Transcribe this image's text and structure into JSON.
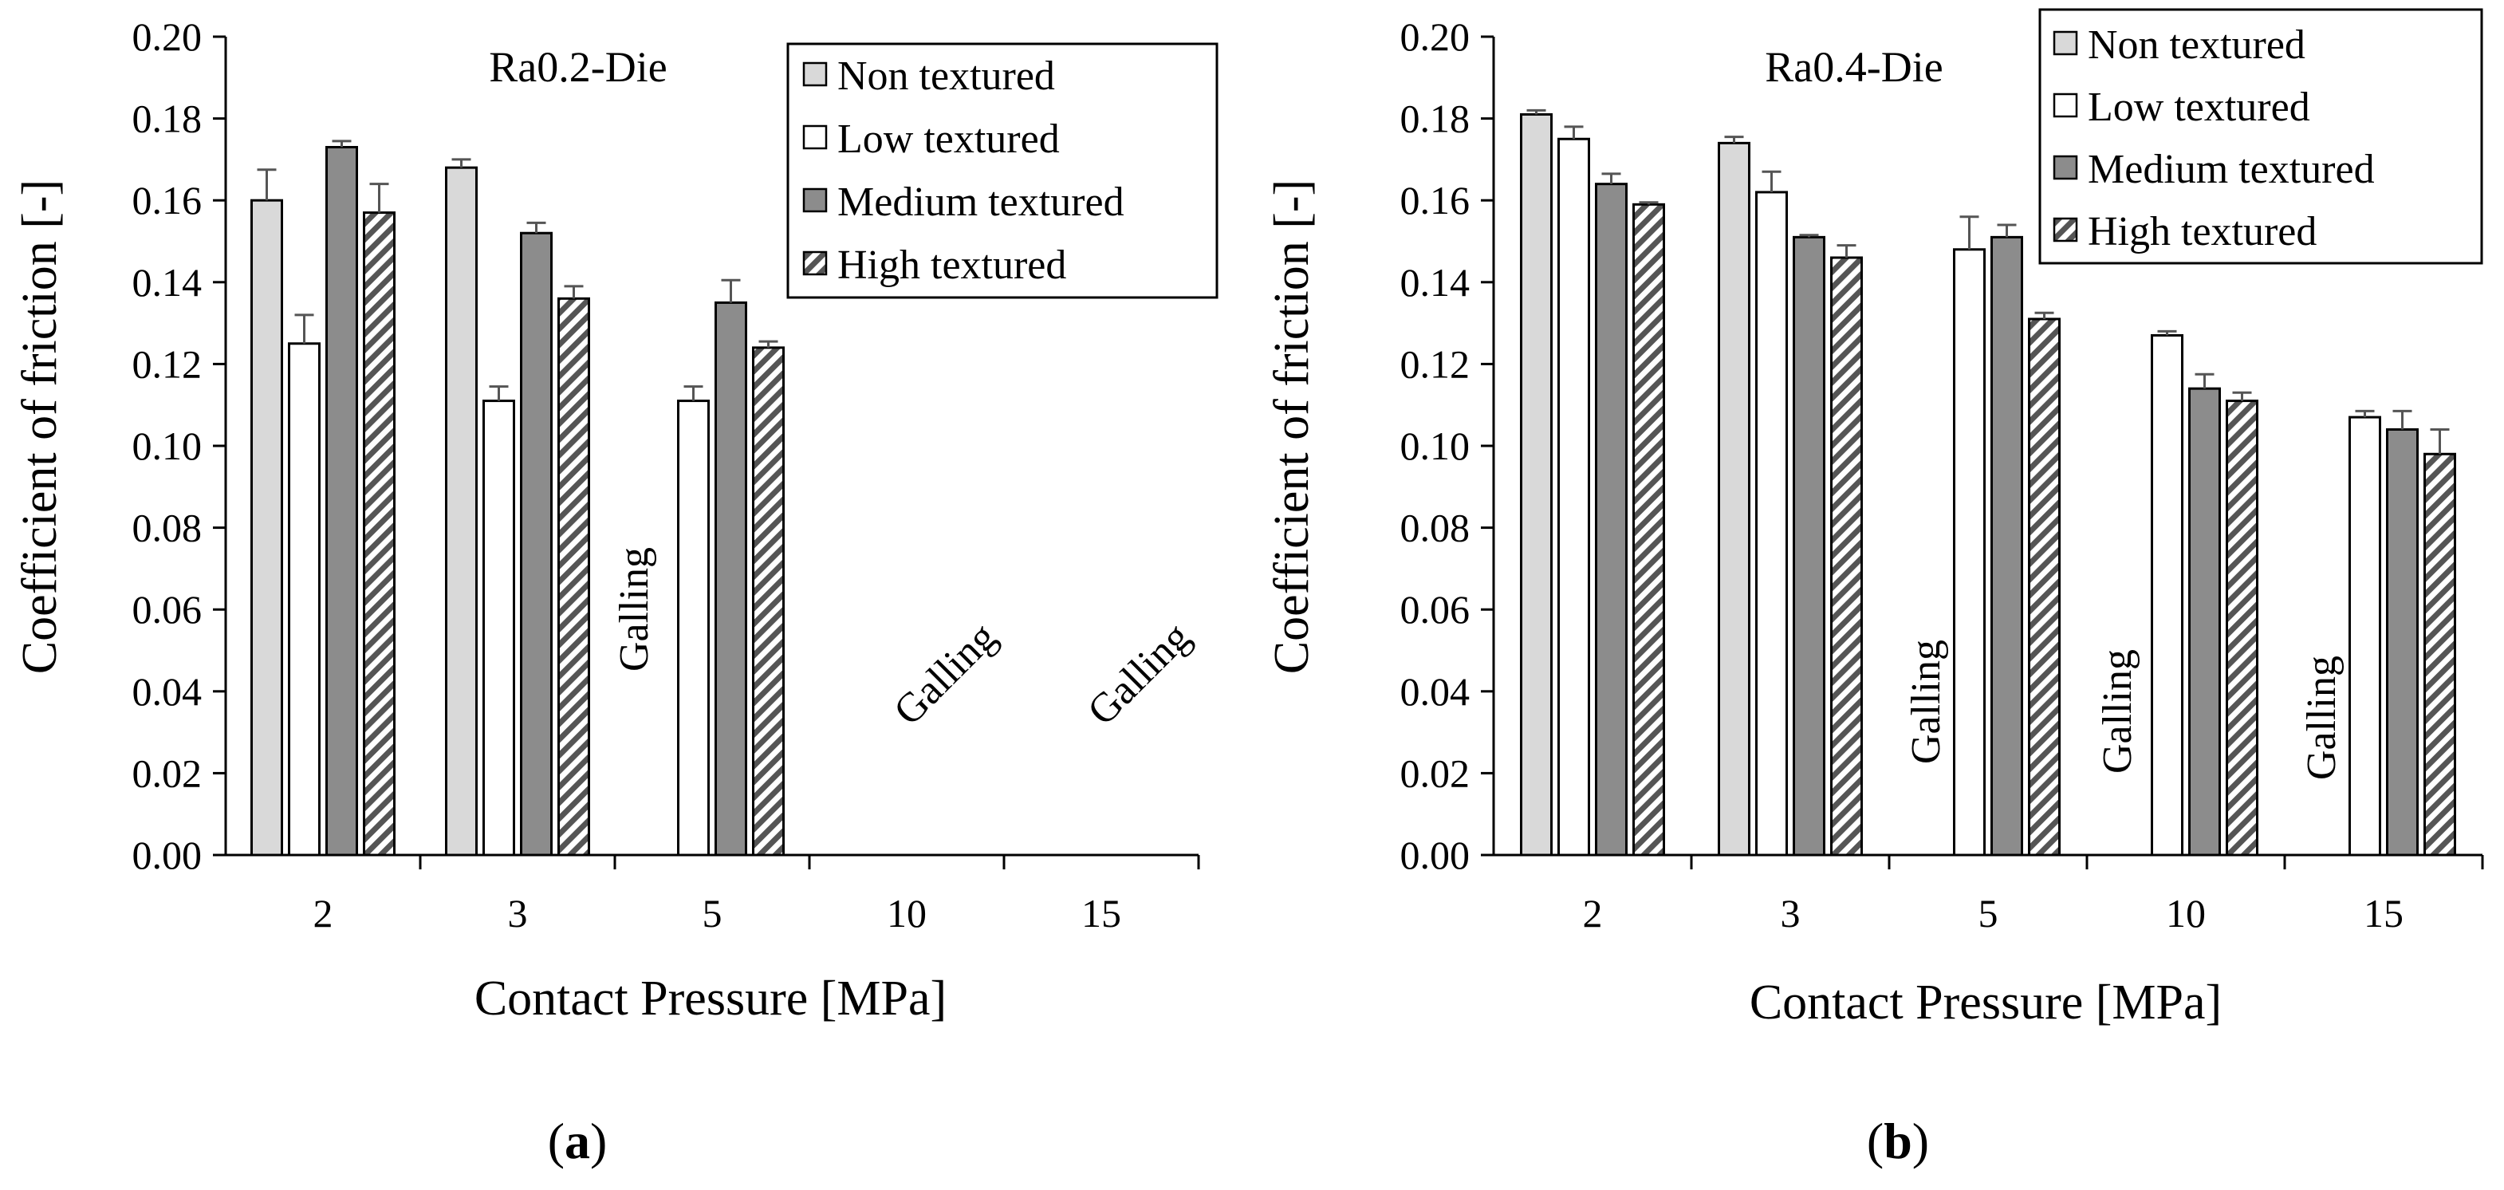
{
  "chart_data": [
    {
      "type": "bar",
      "panel_label": "a",
      "title": "Ra0.2-Die",
      "xlabel": "Contact Pressure [MPa]",
      "ylabel": "Coefficient of friction [-]",
      "ylim": [
        0,
        0.2
      ],
      "yticks": [
        "0.00",
        "0.02",
        "0.04",
        "0.06",
        "0.08",
        "0.10",
        "0.12",
        "0.14",
        "0.16",
        "0.18",
        "0.20"
      ],
      "categories": [
        "2",
        "3",
        "5",
        "10",
        "15"
      ],
      "series": [
        {
          "name": "Non textured",
          "values": [
            0.16,
            0.168,
            null,
            null,
            null
          ],
          "errors": [
            0.0075,
            0.002,
            null,
            null,
            null
          ]
        },
        {
          "name": "Low textured",
          "values": [
            0.125,
            0.111,
            0.111,
            null,
            null
          ],
          "errors": [
            0.007,
            0.0035,
            0.0035,
            null,
            null
          ]
        },
        {
          "name": "Medium textured",
          "values": [
            0.173,
            0.152,
            0.135,
            null,
            null
          ],
          "errors": [
            0.0015,
            0.0025,
            0.0055,
            null,
            null
          ]
        },
        {
          "name": "High textured",
          "values": [
            0.157,
            0.136,
            0.124,
            null,
            null
          ],
          "errors": [
            0.007,
            0.003,
            0.0015,
            null,
            null
          ]
        }
      ],
      "annotations": [
        {
          "text": "Galling",
          "category": "5"
        },
        {
          "text": "Galling",
          "category": "10"
        },
        {
          "text": "Galling",
          "category": "15"
        }
      ]
    },
    {
      "type": "bar",
      "panel_label": "b",
      "title": "Ra0.4-Die",
      "xlabel": "Contact Pressure [MPa]",
      "ylabel": "Coefficient of friction [-]",
      "ylim": [
        0,
        0.2
      ],
      "yticks": [
        "0.00",
        "0.02",
        "0.04",
        "0.06",
        "0.08",
        "0.10",
        "0.12",
        "0.14",
        "0.16",
        "0.18",
        "0.20"
      ],
      "categories": [
        "2",
        "3",
        "5",
        "10",
        "15"
      ],
      "series": [
        {
          "name": "Non textured",
          "values": [
            0.181,
            0.174,
            null,
            null,
            null
          ],
          "errors": [
            0.001,
            0.0015,
            null,
            null,
            null
          ]
        },
        {
          "name": "Low textured",
          "values": [
            0.175,
            0.162,
            0.148,
            0.127,
            0.107
          ],
          "errors": [
            0.003,
            0.005,
            0.008,
            0.001,
            0.0015
          ]
        },
        {
          "name": "Medium textured",
          "values": [
            0.164,
            0.151,
            0.151,
            0.114,
            0.104
          ],
          "errors": [
            0.0025,
            0.0005,
            0.003,
            0.0035,
            0.0045
          ]
        },
        {
          "name": "High textured",
          "values": [
            0.159,
            0.146,
            0.131,
            0.111,
            0.098
          ],
          "errors": [
            0.0005,
            0.003,
            0.0015,
            0.002,
            0.006
          ]
        }
      ],
      "annotations": [
        {
          "text": "Galling",
          "category": "5"
        },
        {
          "text": "Galling",
          "category": "10"
        },
        {
          "text": "Galling",
          "category": "15"
        }
      ]
    }
  ],
  "colors": {
    "non_textured": "#d9d9d9",
    "low_textured": "#ffffff",
    "medium_textured": "#8c8c8c",
    "high_textured_hatch": "#555555",
    "axis": "#000000",
    "error_bar": "#555555"
  }
}
